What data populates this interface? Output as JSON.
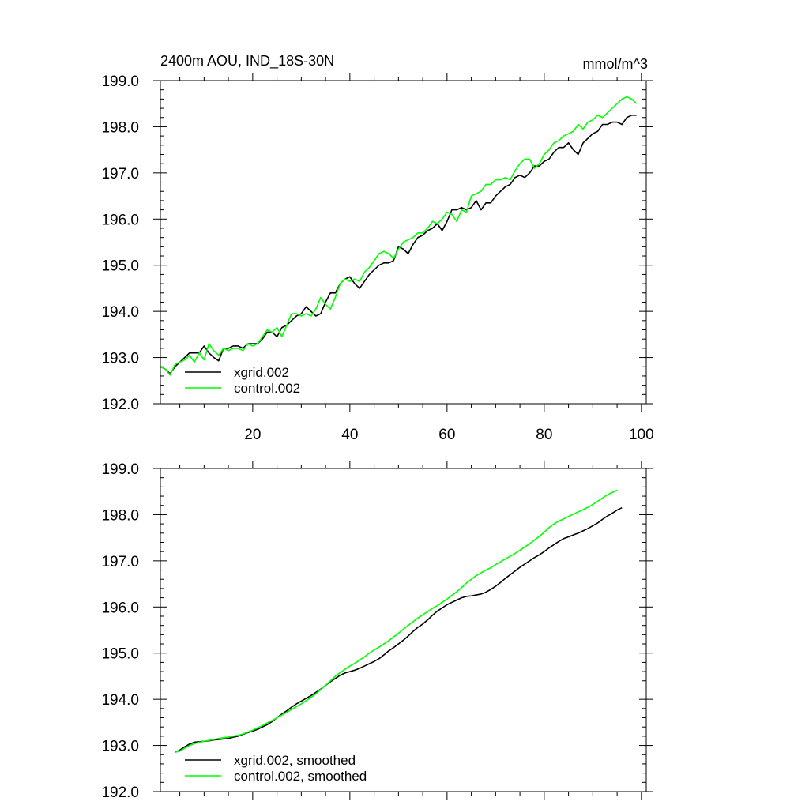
{
  "chart_data": [
    {
      "type": "line",
      "title": "2400m AOU, IND_18S-30N",
      "units": "mmol/m^3",
      "xlim": [
        1,
        101
      ],
      "ylim": [
        192.0,
        199.0
      ],
      "x_ticks": [
        20,
        40,
        60,
        80,
        100
      ],
      "x_tick_labels": [
        "20",
        "40",
        "60",
        "80",
        "100"
      ],
      "y_ticks": [
        192.0,
        193.0,
        194.0,
        195.0,
        196.0,
        197.0,
        198.0,
        199.0
      ],
      "y_tick_labels": [
        "192.0",
        "193.0",
        "194.0",
        "195.0",
        "196.0",
        "197.0",
        "198.0",
        "199.0"
      ],
      "legend_placement": "bottom-left",
      "series": [
        {
          "name": "xgrid.002",
          "color": "#000000",
          "x_start": 1,
          "values": [
            192.8,
            192.75,
            192.65,
            192.8,
            192.9,
            193.0,
            193.1,
            193.1,
            193.1,
            193.25,
            193.1,
            193.0,
            192.93,
            193.2,
            193.2,
            193.25,
            193.25,
            193.2,
            193.3,
            193.3,
            193.3,
            193.4,
            193.55,
            193.55,
            193.45,
            193.65,
            193.7,
            193.8,
            193.9,
            193.95,
            194.1,
            194.0,
            193.9,
            193.95,
            194.2,
            194.4,
            194.4,
            194.6,
            194.7,
            194.75,
            194.6,
            194.5,
            194.65,
            194.8,
            194.9,
            195.0,
            195.05,
            195.05,
            195.1,
            195.4,
            195.35,
            195.25,
            195.45,
            195.6,
            195.65,
            195.75,
            195.8,
            195.9,
            195.75,
            195.95,
            196.2,
            196.2,
            196.25,
            196.2,
            196.25,
            196.4,
            196.2,
            196.35,
            196.35,
            196.5,
            196.6,
            196.7,
            196.75,
            196.9,
            196.95,
            196.9,
            197.0,
            197.15,
            197.15,
            197.25,
            197.3,
            197.45,
            197.55,
            197.55,
            197.65,
            197.5,
            197.4,
            197.65,
            197.75,
            197.85,
            197.9,
            198.05,
            198.05,
            198.1,
            198.1,
            198.05,
            198.2,
            198.25,
            198.25
          ]
        },
        {
          "name": "control.002",
          "color": "#00ff00",
          "x_start": 1,
          "values": [
            192.8,
            192.75,
            192.62,
            192.85,
            192.9,
            192.95,
            193.05,
            192.9,
            193.1,
            192.95,
            193.3,
            193.15,
            193.05,
            193.2,
            193.15,
            193.2,
            193.2,
            193.15,
            193.3,
            193.25,
            193.3,
            193.45,
            193.6,
            193.55,
            193.65,
            193.45,
            193.7,
            193.95,
            193.95,
            193.9,
            193.95,
            193.9,
            194.05,
            194.3,
            194.15,
            194.05,
            194.3,
            194.6,
            194.7,
            194.65,
            194.7,
            194.65,
            194.85,
            194.95,
            195.1,
            195.25,
            195.3,
            195.25,
            195.15,
            195.35,
            195.5,
            195.55,
            195.6,
            195.7,
            195.7,
            195.8,
            195.95,
            195.9,
            196.0,
            196.15,
            196.1,
            195.95,
            196.2,
            196.15,
            196.5,
            196.55,
            196.6,
            196.75,
            196.75,
            196.85,
            196.85,
            196.9,
            196.85,
            197.05,
            197.2,
            197.3,
            197.3,
            197.1,
            197.2,
            197.4,
            197.5,
            197.65,
            197.7,
            197.8,
            197.85,
            197.9,
            198.05,
            197.95,
            198.1,
            198.15,
            198.25,
            198.2,
            198.3,
            198.4,
            198.5,
            198.6,
            198.65,
            198.6,
            198.5
          ]
        }
      ]
    },
    {
      "type": "line",
      "xlim": [
        1,
        101
      ],
      "ylim": [
        192.0,
        199.0
      ],
      "x_ticks": [
        20,
        40,
        60,
        80,
        100
      ],
      "y_ticks": [
        192.0,
        193.0,
        194.0,
        195.0,
        196.0,
        197.0,
        198.0,
        199.0
      ],
      "y_tick_labels": [
        "192.0",
        "193.0",
        "194.0",
        "195.0",
        "196.0",
        "197.0",
        "198.0",
        "199.0"
      ],
      "legend_placement": "bottom-left",
      "series": [
        {
          "name": "xgrid.002, smoothed",
          "color": "#000000",
          "x_start": 4,
          "values": [
            192.85,
            192.9,
            192.97,
            193.03,
            193.07,
            193.08,
            193.09,
            193.1,
            193.12,
            193.13,
            193.14,
            193.15,
            193.18,
            193.2,
            193.24,
            193.28,
            193.31,
            193.35,
            193.4,
            193.45,
            193.52,
            193.6,
            193.68,
            193.75,
            193.83,
            193.9,
            193.96,
            194.02,
            194.08,
            194.15,
            194.22,
            194.3,
            194.38,
            194.45,
            194.52,
            194.57,
            194.6,
            194.63,
            194.67,
            194.72,
            194.77,
            194.82,
            194.88,
            194.96,
            195.05,
            195.12,
            195.2,
            195.28,
            195.37,
            195.47,
            195.56,
            195.63,
            195.72,
            195.82,
            195.91,
            195.98,
            196.05,
            196.1,
            196.15,
            196.2,
            196.23,
            196.24,
            196.26,
            196.28,
            196.32,
            196.38,
            196.45,
            196.53,
            196.62,
            196.7,
            196.78,
            196.86,
            196.93,
            197.0,
            197.07,
            197.13,
            197.2,
            197.28,
            197.35,
            197.42,
            197.48,
            197.52,
            197.56,
            197.6,
            197.65,
            197.7,
            197.76,
            197.82,
            197.9,
            197.97,
            198.03,
            198.1,
            198.15
          ]
        },
        {
          "name": "control.002, smoothed",
          "color": "#00ff00",
          "x_start": 4,
          "values": [
            192.85,
            192.88,
            192.94,
            193.0,
            193.04,
            193.07,
            193.09,
            193.11,
            193.13,
            193.15,
            193.17,
            193.18,
            193.2,
            193.22,
            193.25,
            193.29,
            193.33,
            193.38,
            193.43,
            193.49,
            193.54,
            193.6,
            193.66,
            193.72,
            193.78,
            193.84,
            193.9,
            193.97,
            194.04,
            194.12,
            194.21,
            194.3,
            194.4,
            194.5,
            194.58,
            194.65,
            194.72,
            194.78,
            194.85,
            194.92,
            195.0,
            195.07,
            195.13,
            195.2,
            195.27,
            195.35,
            195.43,
            195.52,
            195.6,
            195.68,
            195.76,
            195.83,
            195.9,
            195.97,
            196.03,
            196.1,
            196.17,
            196.25,
            196.33,
            196.42,
            196.52,
            196.6,
            196.68,
            196.74,
            196.8,
            196.85,
            196.92,
            196.98,
            197.04,
            197.1,
            197.16,
            197.23,
            197.3,
            197.37,
            197.45,
            197.53,
            197.62,
            197.72,
            197.8,
            197.86,
            197.91,
            197.96,
            198.01,
            198.06,
            198.11,
            198.16,
            198.22,
            198.29,
            198.36,
            198.43,
            198.48,
            198.53
          ]
        }
      ]
    }
  ]
}
